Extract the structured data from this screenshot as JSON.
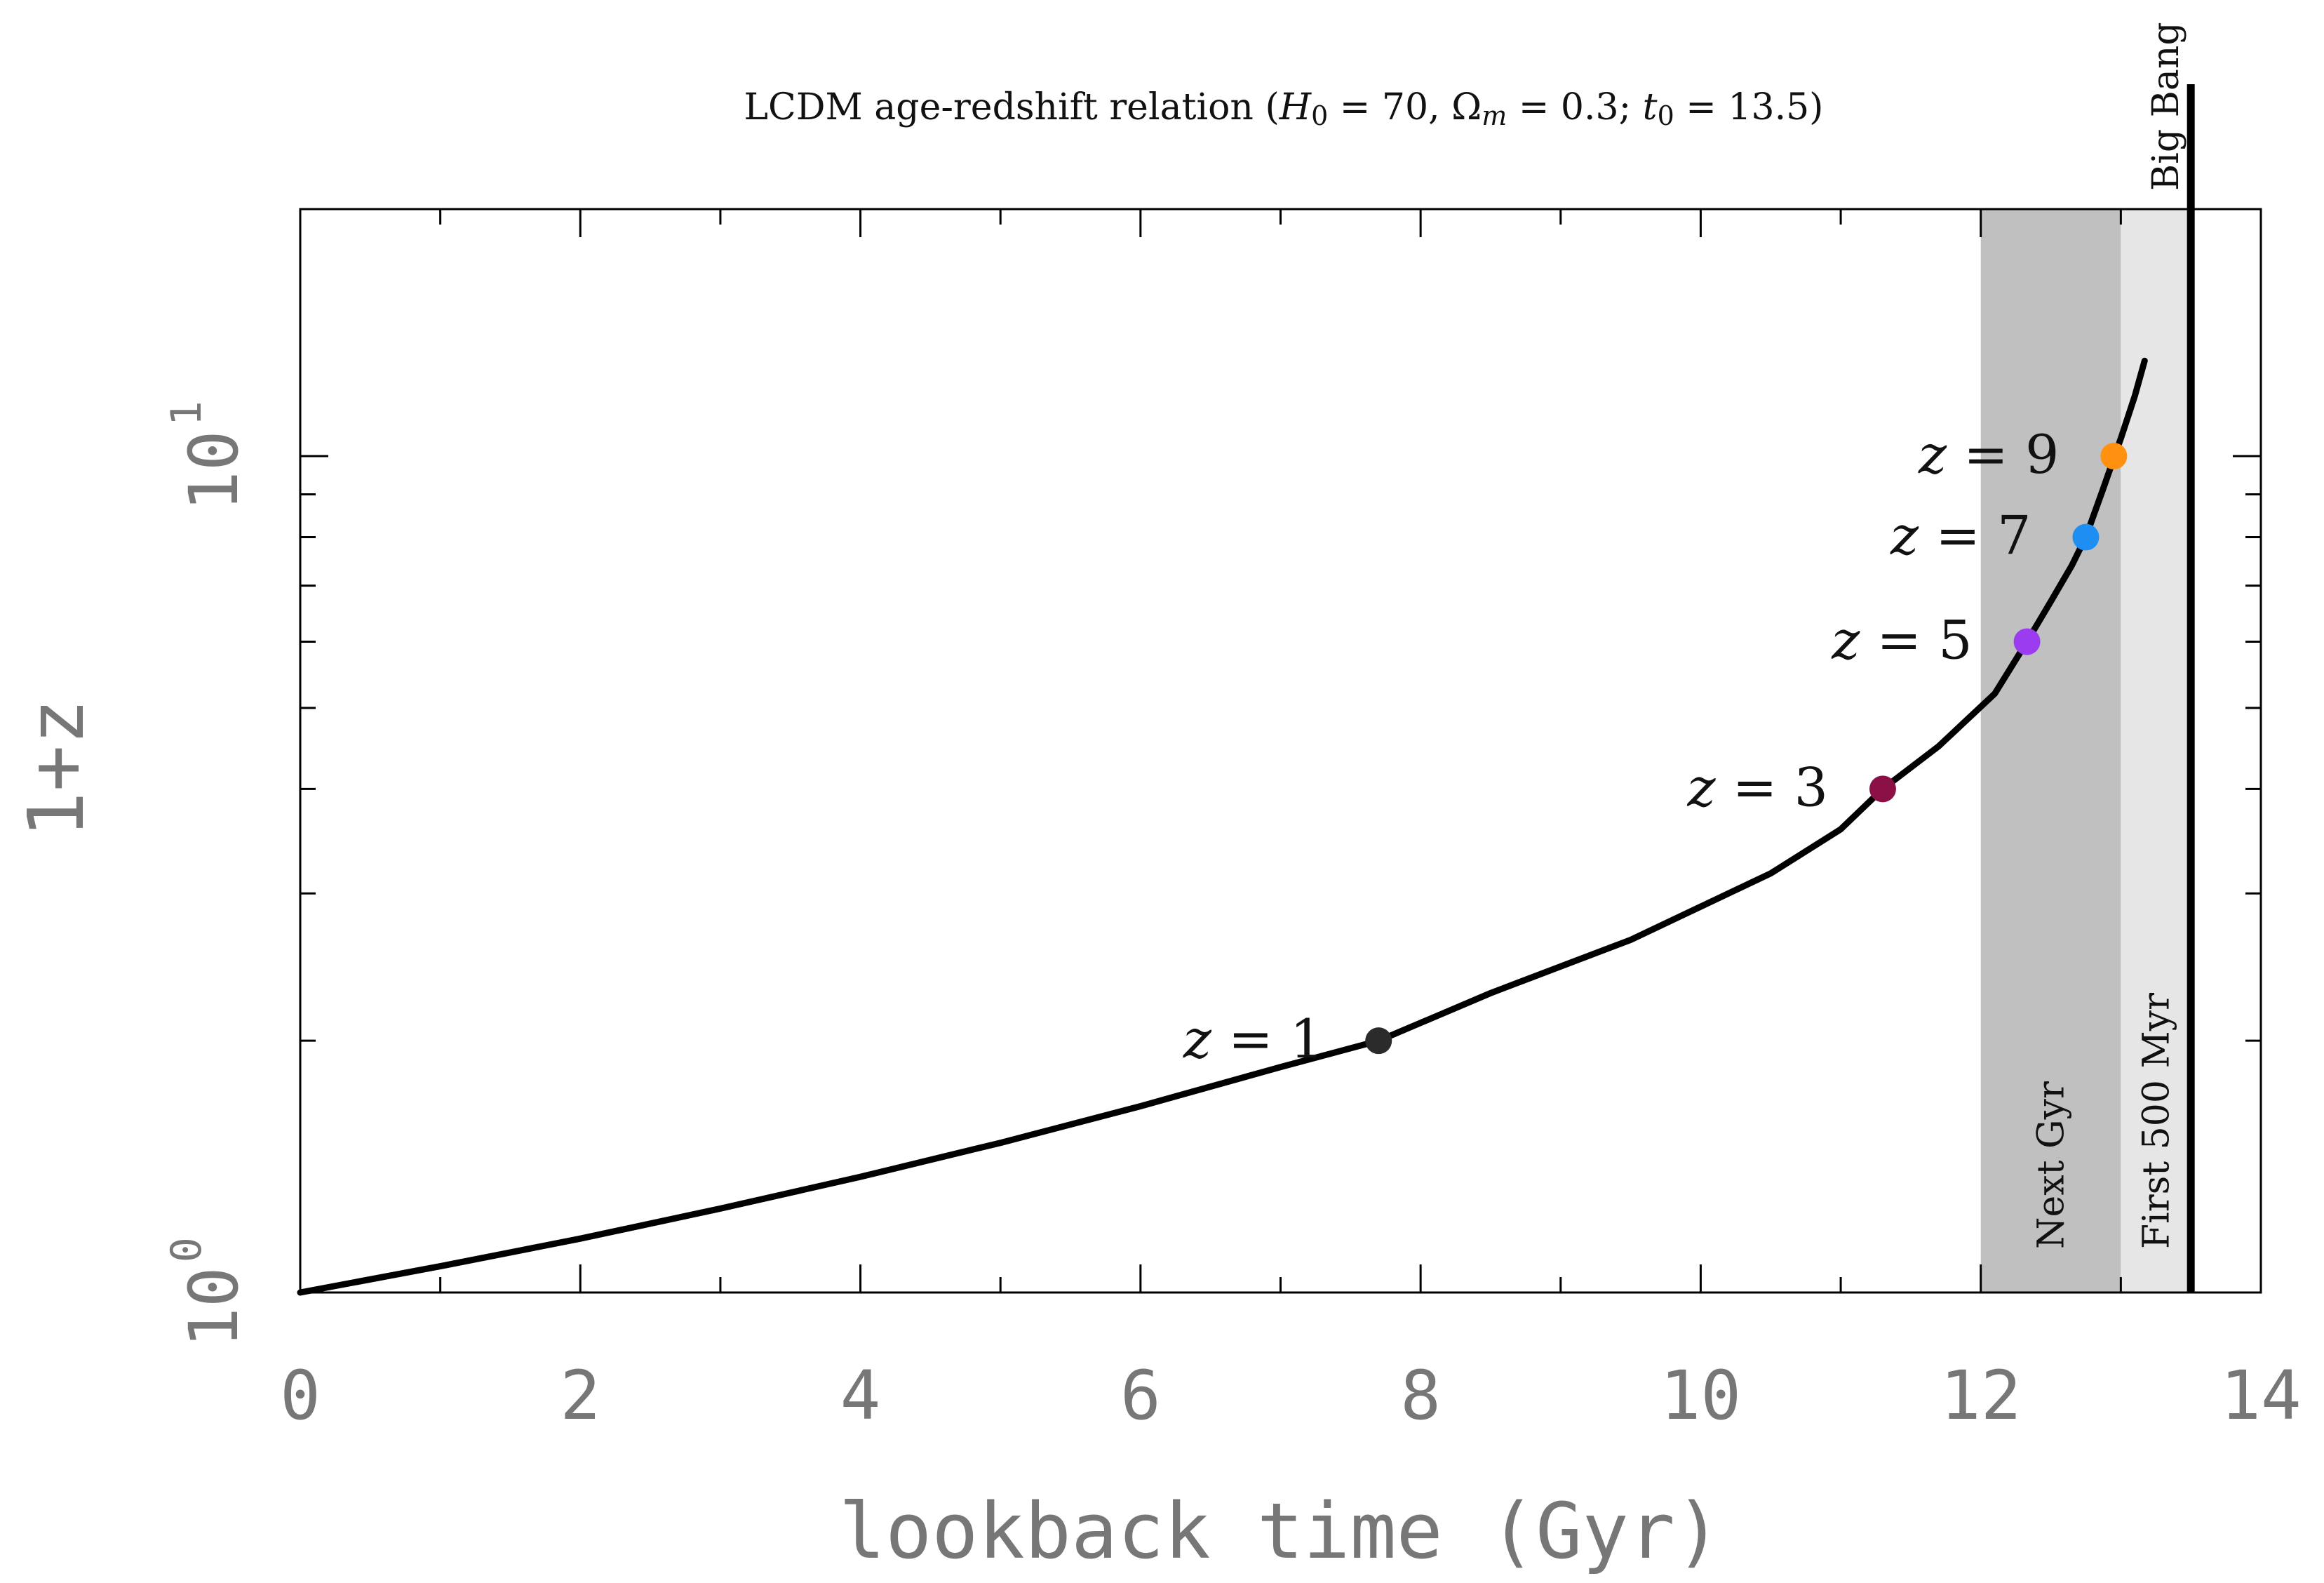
{
  "chart_data": {
    "type": "line",
    "title_parts": [
      "LCDM age-redshift relation (",
      "H",
      "0",
      " = 70, Ω",
      "m",
      " = 0.3;  ",
      "t",
      "0",
      " = 13.5)"
    ],
    "xlabel": "lookback time (Gyr)",
    "ylabel": "1+z",
    "xlim": [
      0,
      14
    ],
    "ylim": [
      1,
      13.2
    ],
    "y_scale": "log",
    "x_ticks": [
      0,
      2,
      4,
      6,
      8,
      10,
      12,
      14
    ],
    "x_tick_labels": [
      "0",
      "2",
      "4",
      "6",
      "8",
      "10",
      "12",
      "14"
    ],
    "y_ticks": [
      {
        "value": 1,
        "base": "10",
        "exp": "0"
      },
      {
        "value": 10,
        "base": "10",
        "exp": "1"
      }
    ],
    "y_minor_ticks": [
      2,
      3,
      4,
      5,
      6,
      7,
      8,
      9
    ],
    "curve": {
      "x": [
        0,
        1,
        2,
        3,
        4,
        5,
        6,
        7,
        7.7,
        8.5,
        9.5,
        10.5,
        11.0,
        11.3,
        11.7,
        12.1,
        12.33,
        12.5,
        12.65,
        12.75,
        12.87,
        13.0,
        13.1,
        13.17
      ],
      "y": [
        1.0,
        1.075,
        1.16,
        1.26,
        1.375,
        1.51,
        1.67,
        1.86,
        2.0,
        2.28,
        2.64,
        3.17,
        3.58,
        4.0,
        4.5,
        5.2,
        6.0,
        6.7,
        7.4,
        8.0,
        9.1,
        10.5,
        11.8,
        13.0
      ],
      "color": "#000000"
    },
    "points": [
      {
        "label": "z = 1",
        "z_symbol": "z",
        "value_text": " = 1",
        "x": 7.7,
        "y": 2,
        "color": "#2b2b2b"
      },
      {
        "label": "z = 3",
        "z_symbol": "z",
        "value_text": " = 3",
        "x": 11.3,
        "y": 4,
        "color": "#8a1046"
      },
      {
        "label": "z = 5",
        "z_symbol": "z",
        "value_text": " = 5",
        "x": 12.33,
        "y": 6,
        "color": "#9b3cf0"
      },
      {
        "label": "z = 7",
        "z_symbol": "z",
        "value_text": " = 7",
        "x": 12.75,
        "y": 8,
        "color": "#1f8ef2"
      },
      {
        "label": "z = 9",
        "z_symbol": "z",
        "value_text": " = 9",
        "x": 12.95,
        "y": 10,
        "color": "#ff9010"
      }
    ],
    "bands": [
      {
        "label": "Next Gyr",
        "x0": 12.0,
        "x1": 13.0,
        "color": "#c0c0c0"
      },
      {
        "label": "First 500 Myr",
        "x0": 13.0,
        "x1": 13.5,
        "color": "#e6e6e6"
      }
    ],
    "vline": {
      "label": "Big Bang",
      "x": 13.5,
      "color": "#000000"
    },
    "grid": false,
    "legend": "none"
  }
}
